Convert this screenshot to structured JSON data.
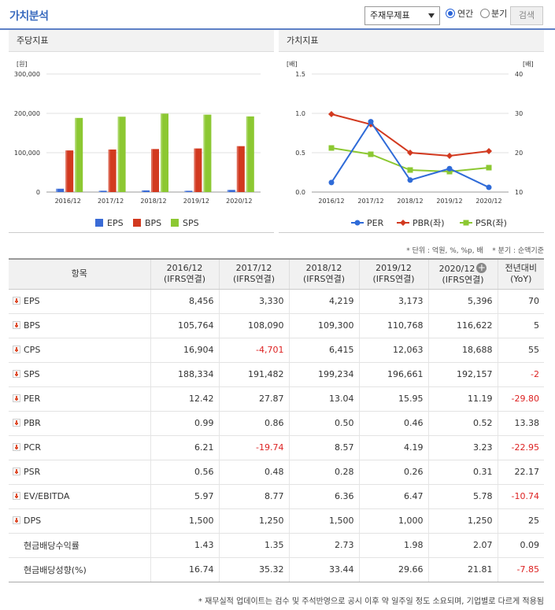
{
  "header": {
    "title": "가치분석",
    "select_value": "주재무제표",
    "radio_annual": "연간",
    "radio_quarter": "분기",
    "search_button": "검색"
  },
  "panels": {
    "left_title": "주당지표",
    "right_title": "가치지표"
  },
  "unit_note": "* 단위 : 억원, %, %p, 배    * 분기 : 순액기준",
  "colors": {
    "EPS": "#3a6bd6",
    "BPS": "#d2391f",
    "SPS": "#8cc832",
    "PER": "#2f6bd8",
    "PBR": "#d2391f",
    "PSR": "#8cc832"
  },
  "chart_data": [
    {
      "type": "bar",
      "unit_label": "[원]",
      "categories": [
        "2016/12",
        "2017/12",
        "2018/12",
        "2019/12",
        "2020/12"
      ],
      "ylim": [
        0,
        300000
      ],
      "yticks": [
        "300,000",
        "200,000",
        "100,000",
        "0"
      ],
      "series": [
        {
          "name": "EPS",
          "values": [
            8456,
            3330,
            4219,
            3173,
            5396
          ]
        },
        {
          "name": "BPS",
          "values": [
            105764,
            108090,
            109300,
            110768,
            116622
          ]
        },
        {
          "name": "SPS",
          "values": [
            188334,
            191482,
            199234,
            196661,
            192157
          ]
        }
      ],
      "legend": "bottom"
    },
    {
      "type": "line",
      "left_unit_label": "[배]",
      "right_unit_label": "[배]",
      "categories": [
        "2016/12",
        "2017/12",
        "2018/12",
        "2019/12",
        "2020/12"
      ],
      "ylim_left": [
        0,
        1.5
      ],
      "yticks_left": [
        "1.5",
        "1.0",
        "0.5",
        "0.0"
      ],
      "ylim_right": [
        10,
        40
      ],
      "yticks_right": [
        "40",
        "30",
        "20",
        "10"
      ],
      "series": [
        {
          "name": "PER",
          "axis": "right",
          "values": [
            12.42,
            27.87,
            13.04,
            15.95,
            11.19
          ]
        },
        {
          "name": "PBR(좌)",
          "axis": "left",
          "values": [
            0.99,
            0.86,
            0.5,
            0.46,
            0.52
          ]
        },
        {
          "name": "PSR(좌)",
          "axis": "left",
          "values": [
            0.56,
            0.48,
            0.28,
            0.26,
            0.31
          ]
        }
      ],
      "legend": "bottom"
    }
  ],
  "table": {
    "col_item": "항목",
    "columns": [
      {
        "year": "2016/12",
        "basis": "(IFRS연결)"
      },
      {
        "year": "2017/12",
        "basis": "(IFRS연결)"
      },
      {
        "year": "2018/12",
        "basis": "(IFRS연결)"
      },
      {
        "year": "2019/12",
        "basis": "(IFRS연결)"
      },
      {
        "year": "2020/12",
        "basis": "(IFRS연결)"
      }
    ],
    "col_yoy": "전년대비",
    "col_yoy_sub": "(YoY)",
    "rows": [
      {
        "name": "EPS",
        "icon": true,
        "values": [
          "8,456",
          "3,330",
          "4,219",
          "3,173",
          "5,396"
        ],
        "yoy": "70"
      },
      {
        "name": "BPS",
        "icon": true,
        "values": [
          "105,764",
          "108,090",
          "109,300",
          "110,768",
          "116,622"
        ],
        "yoy": "5"
      },
      {
        "name": "CPS",
        "icon": true,
        "values": [
          "16,904",
          "-4,701",
          "6,415",
          "12,063",
          "18,688"
        ],
        "yoy": "55"
      },
      {
        "name": "SPS",
        "icon": true,
        "values": [
          "188,334",
          "191,482",
          "199,234",
          "196,661",
          "192,157"
        ],
        "yoy": "-2"
      },
      {
        "name": "PER",
        "icon": true,
        "values": [
          "12.42",
          "27.87",
          "13.04",
          "15.95",
          "11.19"
        ],
        "yoy": "-29.80"
      },
      {
        "name": "PBR",
        "icon": true,
        "values": [
          "0.99",
          "0.86",
          "0.50",
          "0.46",
          "0.52"
        ],
        "yoy": "13.38"
      },
      {
        "name": "PCR",
        "icon": true,
        "values": [
          "6.21",
          "-19.74",
          "8.57",
          "4.19",
          "3.23"
        ],
        "yoy": "-22.95"
      },
      {
        "name": "PSR",
        "icon": true,
        "values": [
          "0.56",
          "0.48",
          "0.28",
          "0.26",
          "0.31"
        ],
        "yoy": "22.17"
      },
      {
        "name": "EV/EBITDA",
        "icon": true,
        "values": [
          "5.97",
          "8.77",
          "6.36",
          "6.47",
          "5.78"
        ],
        "yoy": "-10.74"
      },
      {
        "name": "DPS",
        "icon": true,
        "values": [
          "1,500",
          "1,250",
          "1,500",
          "1,000",
          "1,250"
        ],
        "yoy": "25"
      },
      {
        "name": "현금배당수익률",
        "icon": false,
        "values": [
          "1.43",
          "1.35",
          "2.73",
          "1.98",
          "2.07"
        ],
        "yoy": "0.09"
      },
      {
        "name": "현금배당성향(%)",
        "icon": false,
        "values": [
          "16.74",
          "35.32",
          "33.44",
          "29.66",
          "21.81"
        ],
        "yoy": "-7.85"
      }
    ]
  },
  "footnote": "* 재무실적 업데이트는 검수 및 주석반영으로 공시 이후 약 일주일 정도 소요되며, 기업별로 다르게 적용됨"
}
